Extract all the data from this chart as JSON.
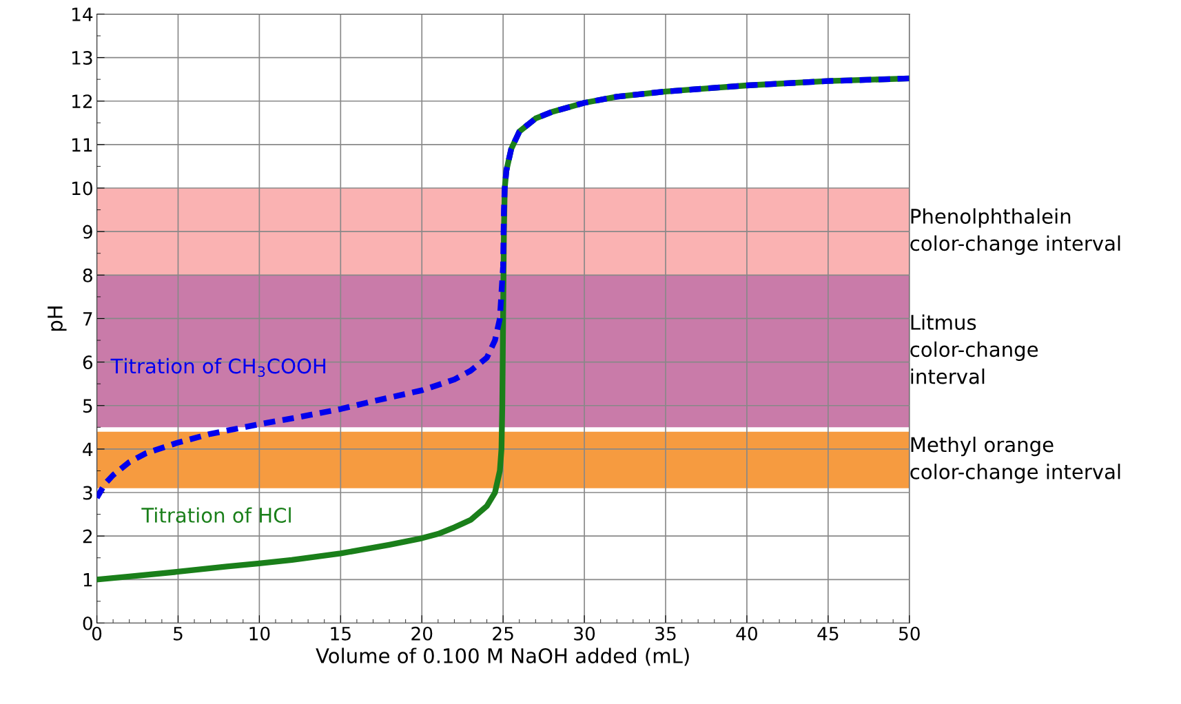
{
  "chart_data": {
    "type": "line",
    "xlabel": "Volume of 0.100 M NaOH added (mL)",
    "ylabel": "pH",
    "xlim": [
      0,
      50
    ],
    "xticks": [
      0,
      5,
      10,
      15,
      20,
      25,
      30,
      35,
      40,
      45,
      50
    ],
    "ylim": [
      0,
      14
    ],
    "yticks": [
      0,
      1,
      2,
      3,
      4,
      5,
      6,
      7,
      8,
      9,
      10,
      11,
      12,
      13,
      14
    ],
    "grid": true,
    "legend": false,
    "bands": [
      {
        "axis": "y",
        "from": 8,
        "to": 10,
        "label": "Phenolphthalein\ncolor-change interval",
        "color": "#f9a5a5"
      },
      {
        "axis": "y",
        "from": 4.5,
        "to": 8,
        "label": "Litmus\ncolor-change\ninterval",
        "color": "#c0649a"
      },
      {
        "axis": "y",
        "from": 3.1,
        "to": 4.4,
        "label": "Methyl orange\ncolor-change interval",
        "color": "#f58a1f"
      }
    ],
    "series": [
      {
        "name": "Titration of HCl",
        "color": "#1a7f1a",
        "line_style": "solid",
        "x": [
          0,
          2,
          5,
          8,
          10,
          12,
          15,
          18,
          20,
          21,
          22,
          23,
          24,
          24.5,
          24.8,
          24.9,
          24.95,
          25,
          25.05,
          25.1,
          25.2,
          25.5,
          26,
          27,
          28,
          30,
          32,
          35,
          40,
          45,
          50
        ],
        "values": [
          1.0,
          1.07,
          1.18,
          1.3,
          1.37,
          1.45,
          1.6,
          1.8,
          1.95,
          2.05,
          2.2,
          2.37,
          2.69,
          3.0,
          3.5,
          4.0,
          5.0,
          7.0,
          9.0,
          10.0,
          10.4,
          10.9,
          11.3,
          11.6,
          11.75,
          11.96,
          12.1,
          12.22,
          12.36,
          12.46,
          12.52
        ]
      },
      {
        "name": "Titration of CH$_{3}$COOH",
        "color": "#0000ee",
        "line_style": "dashed",
        "x": [
          0,
          0.5,
          1,
          2,
          3,
          5,
          7,
          10,
          12.5,
          15,
          17,
          20,
          22,
          23,
          24,
          24.5,
          24.8,
          25,
          25.05,
          25.1,
          25.2,
          25.5,
          26,
          27,
          28,
          30,
          32,
          35,
          40,
          45,
          50
        ],
        "values": [
          2.88,
          3.2,
          3.4,
          3.7,
          3.9,
          4.15,
          4.35,
          4.57,
          4.74,
          4.92,
          5.1,
          5.35,
          5.6,
          5.8,
          6.1,
          6.5,
          7.0,
          8.2,
          9.5,
          10.0,
          10.4,
          10.9,
          11.3,
          11.6,
          11.75,
          11.96,
          12.1,
          12.22,
          12.36,
          12.46,
          12.52
        ]
      }
    ]
  }
}
